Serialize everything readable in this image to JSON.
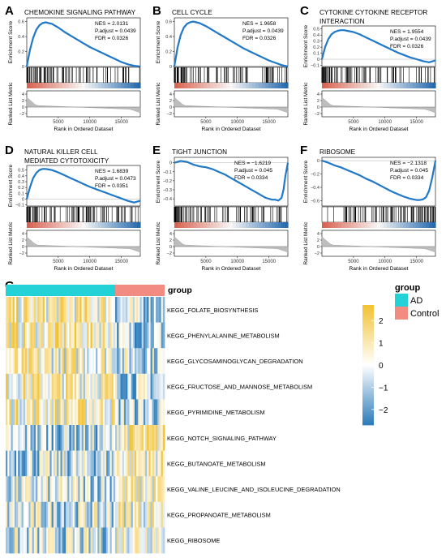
{
  "colors": {
    "curve": "#1f78c8",
    "low": "#2166ac",
    "mid": "#f7f7f7",
    "high": "#d6604d",
    "heat_low": "#2b7bba",
    "heat_mid": "#ffffff",
    "heat_high": "#f2c232",
    "ad": "#22d2d6",
    "control": "#f28c82"
  },
  "gsea": {
    "y_label": "Enrichment Score",
    "rank_label": "Ranked List Metric",
    "x_label": "Rank in Ordered Dataset",
    "x_ticks": [
      "5000",
      "10000",
      "15000"
    ],
    "panels": [
      {
        "letter": "A",
        "title": [
          "CHEMOKINE SIGNALING PATHWAY"
        ],
        "stats": [
          "NES = 2.0131",
          "P.adjust = 0.0439",
          "FDR = 0.0326"
        ]
      },
      {
        "letter": "B",
        "title": [
          "CELL CYCLE"
        ],
        "stats": [
          "NES = 1.9658",
          "P.adjust = 0.0439",
          "FDR = 0.0326"
        ]
      },
      {
        "letter": "C",
        "title": [
          "CYTOKINE CYTOKINE RECEPTOR",
          "INTERACTION"
        ],
        "stats": [
          "NES = 1.9554",
          "P.adjust = 0.0439",
          "FDR = 0.0326"
        ]
      },
      {
        "letter": "D",
        "title": [
          "NATURAL KILLER CELL",
          "MEDIATED CYTOTOXICITY"
        ],
        "stats": [
          "NES = 1.6839",
          "P.adjust = 0.0473",
          "FDR = 0.0351"
        ]
      },
      {
        "letter": "E",
        "title": [
          "TIGHT JUNCTION"
        ],
        "stats": [
          "NES = −1.6219",
          "P.adjust = 0.045",
          "FDR = 0.0334"
        ]
      },
      {
        "letter": "F",
        "title": [
          "RIBOSOME"
        ],
        "stats": [
          "NES = −2.1318",
          "P.adjust = 0.045",
          "FDR = 0.0334"
        ]
      }
    ]
  },
  "chart_data": [
    {
      "type": "line",
      "panel": "A",
      "title": "CHEMOKINE SIGNALING PATHWAY",
      "xlabel": "Rank in Ordered Dataset",
      "ylabel": "Enrichment Score",
      "xlim": [
        0,
        18000
      ],
      "ylim": [
        0,
        0.65
      ],
      "y_ticks": [
        0,
        0.2,
        0.4,
        0.6
      ],
      "rank_ticks": [
        -2,
        0,
        2,
        4
      ],
      "x": [
        0,
        500,
        1000,
        1500,
        2000,
        2500,
        3000,
        3500,
        4000,
        5000,
        6000,
        7000,
        8000,
        9000,
        10000,
        11000,
        12000,
        13000,
        14000,
        15000,
        16000,
        17000,
        18000
      ],
      "y": [
        0,
        0.22,
        0.38,
        0.49,
        0.55,
        0.58,
        0.59,
        0.58,
        0.57,
        0.52,
        0.46,
        0.41,
        0.36,
        0.31,
        0.26,
        0.22,
        0.18,
        0.14,
        0.1,
        0.06,
        0.03,
        0.01,
        0
      ]
    },
    {
      "type": "line",
      "panel": "B",
      "title": "CELL CYCLE",
      "xlabel": "Rank in Ordered Dataset",
      "ylabel": "Enrichment Score",
      "xlim": [
        0,
        18000
      ],
      "ylim": [
        0,
        0.65
      ],
      "y_ticks": [
        0,
        0.2,
        0.4,
        0.6
      ],
      "rank_ticks": [
        -2,
        0,
        2,
        4
      ],
      "x": [
        0,
        500,
        1000,
        1500,
        2000,
        2500,
        3000,
        3500,
        4000,
        5000,
        6000,
        7000,
        8000,
        9000,
        10000,
        11000,
        12000,
        13000,
        14000,
        15000,
        16000,
        17000,
        18000
      ],
      "y": [
        0,
        0.25,
        0.42,
        0.52,
        0.57,
        0.59,
        0.6,
        0.59,
        0.58,
        0.54,
        0.49,
        0.44,
        0.39,
        0.34,
        0.29,
        0.24,
        0.2,
        0.16,
        0.12,
        0.08,
        0.05,
        0.02,
        0
      ]
    },
    {
      "type": "line",
      "panel": "C",
      "title": "CYTOKINE CYTOKINE RECEPTOR INTERACTION",
      "xlabel": "Rank in Ordered Dataset",
      "ylabel": "Enrichment Score",
      "xlim": [
        0,
        18000
      ],
      "ylim": [
        -0.12,
        0.55
      ],
      "y_ticks": [
        -0.1,
        0,
        0.1,
        0.2,
        0.3,
        0.4,
        0.5
      ],
      "rank_ticks": [
        -2,
        0,
        2,
        4
      ],
      "x": [
        0,
        500,
        1000,
        1500,
        2000,
        2500,
        3000,
        3500,
        4000,
        5000,
        6000,
        7000,
        8000,
        9000,
        10000,
        11000,
        12000,
        13000,
        14000,
        15000,
        16000,
        17000,
        18000
      ],
      "y": [
        0,
        0.2,
        0.33,
        0.41,
        0.45,
        0.47,
        0.48,
        0.48,
        0.47,
        0.45,
        0.41,
        0.36,
        0.31,
        0.26,
        0.21,
        0.16,
        0.11,
        0.07,
        0.03,
        0,
        -0.03,
        -0.05,
        -0.02
      ]
    },
    {
      "type": "line",
      "panel": "D",
      "title": "NATURAL KILLER CELL MEDIATED CYTOTOXICITY",
      "xlabel": "Rank in Ordered Dataset",
      "ylabel": "Enrichment Score",
      "xlim": [
        0,
        18000
      ],
      "ylim": [
        -0.12,
        0.58
      ],
      "y_ticks": [
        -0.1,
        0,
        0.1,
        0.2,
        0.3,
        0.4,
        0.5
      ],
      "rank_ticks": [
        -2,
        0,
        2,
        4
      ],
      "x": [
        0,
        500,
        1000,
        1500,
        2000,
        2500,
        3000,
        3500,
        4000,
        5000,
        6000,
        7000,
        8000,
        9000,
        10000,
        11000,
        12000,
        13000,
        14000,
        15000,
        16000,
        17000,
        18000
      ],
      "y": [
        0,
        0.2,
        0.36,
        0.45,
        0.5,
        0.52,
        0.52,
        0.51,
        0.5,
        0.46,
        0.41,
        0.36,
        0.31,
        0.26,
        0.21,
        0.17,
        0.13,
        0.09,
        0.05,
        0.01,
        -0.03,
        -0.06,
        -0.03
      ]
    },
    {
      "type": "line",
      "panel": "E",
      "title": "TIGHT JUNCTION",
      "xlabel": "Rank in Ordered Dataset",
      "ylabel": "Enrichment Score",
      "xlim": [
        0,
        18000
      ],
      "ylim": [
        -0.48,
        0.06
      ],
      "y_ticks": [
        -0.4,
        -0.3,
        -0.2,
        -0.1,
        0
      ],
      "rank_ticks": [
        -2,
        0,
        2,
        4
      ],
      "x": [
        0,
        1000,
        2000,
        3000,
        4000,
        5000,
        6000,
        7000,
        8000,
        9000,
        10000,
        11000,
        12000,
        13000,
        14000,
        14500,
        15000,
        15500,
        16000,
        16500,
        17000,
        17300,
        17600,
        18000
      ],
      "y": [
        0,
        0.02,
        0.01,
        -0.02,
        -0.04,
        -0.05,
        -0.07,
        -0.1,
        -0.13,
        -0.17,
        -0.21,
        -0.25,
        -0.29,
        -0.33,
        -0.37,
        -0.39,
        -0.4,
        -0.41,
        -0.41,
        -0.42,
        -0.39,
        -0.3,
        -0.15,
        0
      ]
    },
    {
      "type": "line",
      "panel": "F",
      "title": "RIBOSOME",
      "xlabel": "Rank in Ordered Dataset",
      "ylabel": "Enrichment Score",
      "xlim": [
        0,
        18000
      ],
      "ylim": [
        -0.68,
        0.05
      ],
      "y_ticks": [
        -0.6,
        -0.4,
        -0.2,
        0
      ],
      "rank_ticks": [
        -2,
        0,
        2,
        4
      ],
      "x": [
        0,
        1000,
        2000,
        3000,
        4000,
        5000,
        6000,
        7000,
        8000,
        9000,
        10000,
        11000,
        12000,
        13000,
        14000,
        14500,
        15000,
        15500,
        16000,
        16500,
        17000,
        17500,
        18000
      ],
      "y": [
        0,
        -0.03,
        -0.07,
        -0.1,
        -0.14,
        -0.18,
        -0.22,
        -0.27,
        -0.31,
        -0.36,
        -0.41,
        -0.46,
        -0.5,
        -0.54,
        -0.57,
        -0.58,
        -0.59,
        -0.59,
        -0.58,
        -0.55,
        -0.45,
        -0.25,
        0
      ]
    },
    {
      "type": "heatmap",
      "panel": "G",
      "legend_title": "group",
      "groups": [
        "AD",
        "Control"
      ],
      "colorbar_ticks": [
        2,
        1,
        0,
        -1,
        -2
      ],
      "colorbar_tick_labels": [
        "2",
        "1",
        "0",
        "−1",
        "−2"
      ],
      "rows": [
        "KEGG_FOLATE_BIOSYNTHESIS",
        "KEGG_PHENYLALANINE_METABOLISM",
        "KEGG_GLYCOSAMINOGLYCAN_DEGRADATION",
        "KEGG_FRUCTOSE_AND_MANNOSE_METABOLISM",
        "KEGG_PYRIMIDINE_METABOLISM",
        "KEGG_NOTCH_SIGNALING_PATHWAY",
        "KEGG_BUTANOATE_METABOLISM",
        "KEGG_VALINE_LEUCINE_AND_ISOLEUCINE_DEGRADATION",
        "KEGG_PROPANOATE_METABOLISM",
        "KEGG_RIBOSOME"
      ]
    }
  ]
}
